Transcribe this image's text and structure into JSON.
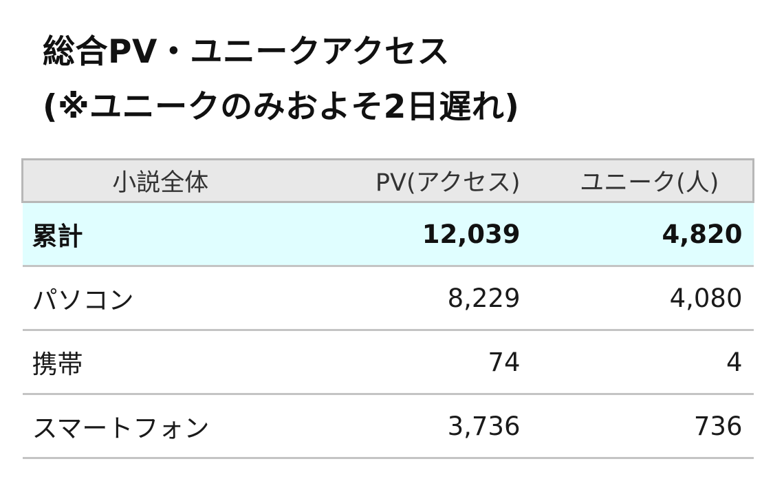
{
  "title": {
    "line1": "総合PV・ユニークアクセス",
    "line2": "(※ユニークのみおよそ2日遅れ)"
  },
  "table": {
    "headers": [
      "小説全体",
      "PV(アクセス)",
      "ユニーク(人)"
    ],
    "rows": [
      {
        "label": "累計",
        "pv": "12,039",
        "unique": "4,820"
      },
      {
        "label": "パソコン",
        "pv": "8,229",
        "unique": "4,080"
      },
      {
        "label": "携帯",
        "pv": "74",
        "unique": "4"
      },
      {
        "label": "スマートフォン",
        "pv": "3,736",
        "unique": "736"
      }
    ]
  },
  "colors": {
    "header_bg": "#e8e8e8",
    "total_row_bg": "#e0feff",
    "border": "#c4c4c4"
  }
}
